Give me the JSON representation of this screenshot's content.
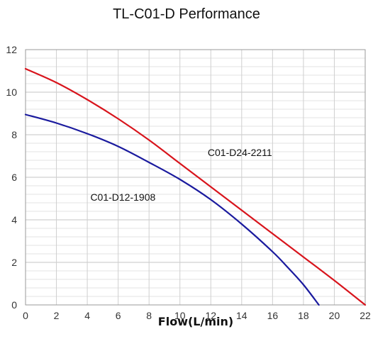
{
  "chart_data": {
    "type": "line",
    "title": "TL-C01-D Performance",
    "xlabel": "Flow(L/min)",
    "ylabel": "",
    "xlim": [
      0,
      22
    ],
    "ylim": [
      0,
      12
    ],
    "x_ticks": [
      0,
      2,
      4,
      6,
      8,
      10,
      12,
      14,
      16,
      18,
      20,
      22
    ],
    "y_ticks": [
      0,
      2,
      4,
      6,
      8,
      10,
      12
    ],
    "grid": true,
    "minor_grid_step_y": 0.4,
    "legend": "none",
    "series": [
      {
        "name": "C01-D24-2211",
        "color": "#d8141c",
        "x": [
          0,
          2,
          4,
          6,
          8,
          10,
          12,
          14,
          16,
          18,
          20,
          22
        ],
        "y": [
          11.1,
          10.45,
          9.65,
          8.75,
          7.75,
          6.65,
          5.55,
          4.45,
          3.35,
          2.25,
          1.15,
          0
        ]
      },
      {
        "name": "C01-D12-1908",
        "color": "#1a1a9e",
        "x": [
          0,
          2,
          4,
          6,
          8,
          10,
          12,
          14,
          16,
          17,
          18,
          19
        ],
        "y": [
          8.95,
          8.55,
          8.05,
          7.45,
          6.7,
          5.9,
          4.95,
          3.8,
          2.5,
          1.75,
          0.95,
          0
        ]
      }
    ],
    "annotations": [
      {
        "text": "C01-D24-2211",
        "x": 11.8,
        "y": 7.0
      },
      {
        "text": "C01-D12-1908",
        "x": 4.2,
        "y": 4.9
      }
    ]
  }
}
